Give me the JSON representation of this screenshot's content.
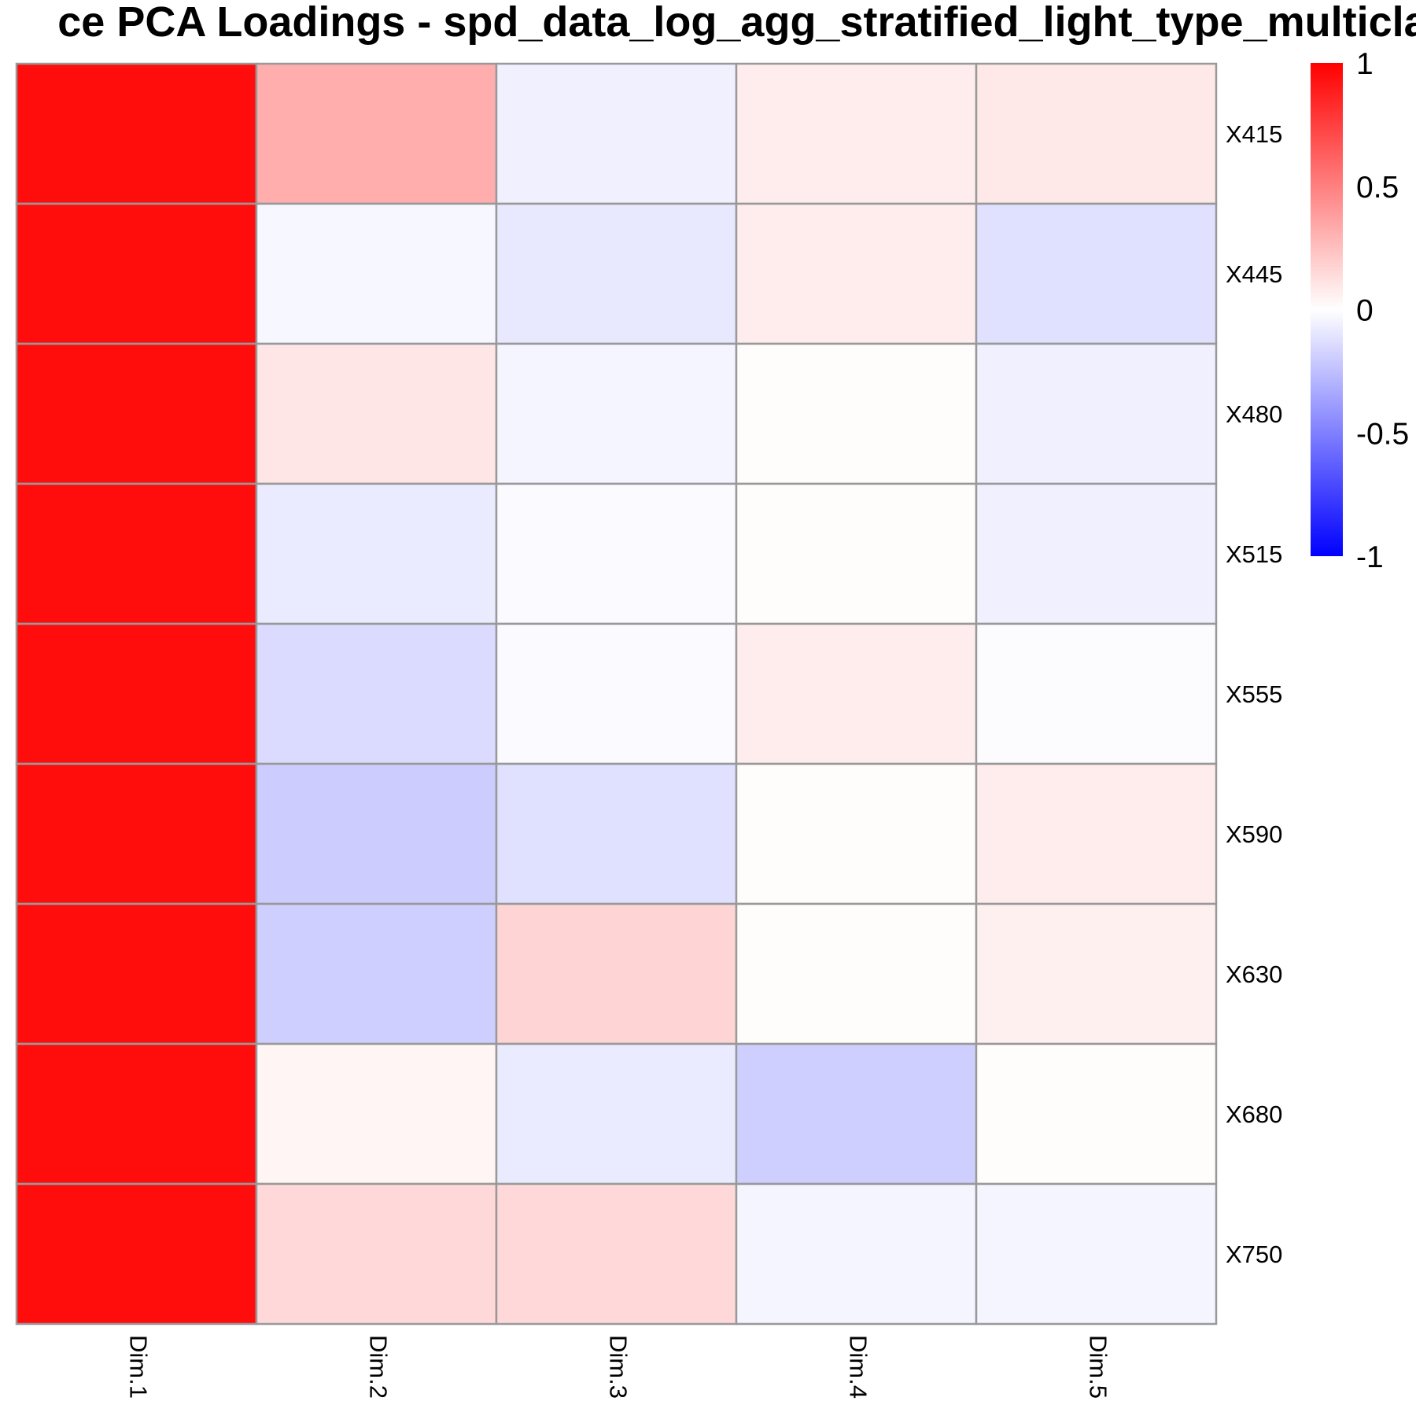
{
  "chart_data": {
    "type": "heatmap",
    "title": "ce PCA Loadings - spd_data_log_agg_stratified_light_type_multiclass",
    "rows": [
      "X415",
      "X445",
      "X480",
      "X515",
      "X555",
      "X590",
      "X630",
      "X680",
      "X750"
    ],
    "columns": [
      "Dim.1",
      "Dim.2",
      "Dim.3",
      "Dim.4",
      "Dim.5"
    ],
    "values": [
      [
        0.95,
        0.32,
        -0.06,
        0.07,
        0.09
      ],
      [
        0.95,
        -0.03,
        -0.09,
        0.07,
        -0.12
      ],
      [
        0.95,
        0.1,
        -0.04,
        0.01,
        -0.06
      ],
      [
        0.95,
        -0.08,
        -0.02,
        0.01,
        -0.06
      ],
      [
        0.95,
        -0.14,
        -0.02,
        0.07,
        -0.01
      ],
      [
        0.95,
        -0.2,
        -0.12,
        0.01,
        0.07
      ],
      [
        0.95,
        -0.19,
        0.17,
        0.01,
        0.06
      ],
      [
        0.95,
        0.04,
        -0.08,
        -0.19,
        0.01
      ],
      [
        0.95,
        0.15,
        0.15,
        -0.04,
        -0.04
      ]
    ],
    "color_scale": {
      "min": -1,
      "max": 1,
      "low_color": "#0000FF",
      "mid_color": "#FFFFFF",
      "high_color": "#FF0000",
      "ticks": [
        1,
        0.5,
        0,
        -0.5,
        -1
      ],
      "tick_labels": [
        "1",
        "0.5",
        "0",
        "-0.5",
        "-1"
      ]
    },
    "grid_color": "#999999",
    "legend_placement": "right"
  }
}
